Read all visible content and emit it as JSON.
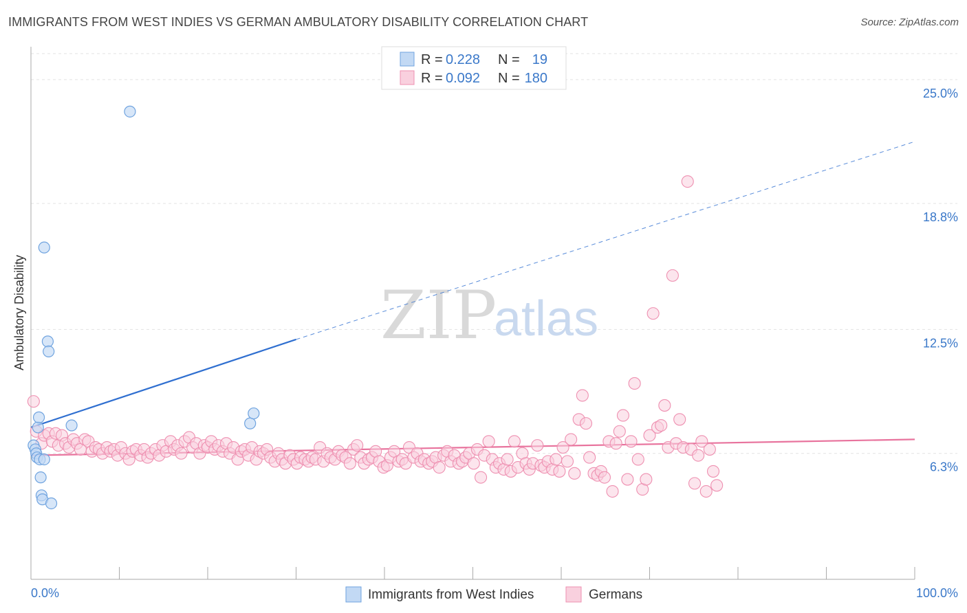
{
  "title": "IMMIGRANTS FROM WEST INDIES VS GERMAN AMBULATORY DISABILITY CORRELATION CHART",
  "source": "Source: ZipAtlas.com",
  "watermark": {
    "zip": "ZIP",
    "atlas": "atlas"
  },
  "colors": {
    "blue": "#6fa3df",
    "blue_fill": "#c2d9f4",
    "blue_line": "#2f6fd0",
    "pink": "#ee8fb0",
    "pink_fill": "#f9d0de",
    "pink_line": "#e8739d",
    "axis_text": "#3a78c9"
  },
  "legend": {
    "rows": [
      {
        "r_label": "R =",
        "r_value": "0.228",
        "n_label": "N =",
        "n_value": "19"
      },
      {
        "r_label": "R =",
        "r_value": "0.092",
        "n_label": "N =",
        "n_value": "180"
      }
    ]
  },
  "bottom_legend": [
    "Immigrants from West Indies",
    "Germans"
  ],
  "chart_data": {
    "type": "scatter",
    "title": "IMMIGRANTS FROM WEST INDIES VS GERMAN AMBULATORY DISABILITY CORRELATION CHART",
    "xlabel": "",
    "ylabel": "Ambulatory Disability",
    "xlim": [
      0,
      100
    ],
    "ylim": [
      0,
      26.3
    ],
    "x_tick_labels": [
      "0.0%",
      "100.0%"
    ],
    "y_ticks": [
      6.3,
      12.5,
      18.8,
      25.0
    ],
    "y_tick_labels": [
      "6.3%",
      "12.5%",
      "18.8%",
      "25.0%"
    ],
    "grid": true,
    "legend_position": "top-center",
    "series": [
      {
        "name": "Immigrants from West Indies",
        "color": "#6fa3df",
        "trend": {
          "x": [
            0,
            30
          ],
          "y": [
            7.6,
            12.0
          ],
          "extended_to": [
            100,
            21.9
          ]
        },
        "points": [
          [
            0.3,
            6.7
          ],
          [
            0.5,
            6.5
          ],
          [
            0.6,
            6.3
          ],
          [
            0.7,
            6.1
          ],
          [
            0.8,
            7.6
          ],
          [
            0.9,
            8.1
          ],
          [
            1.0,
            6.0
          ],
          [
            1.1,
            5.1
          ],
          [
            1.2,
            4.2
          ],
          [
            1.3,
            4.0
          ],
          [
            1.5,
            16.6
          ],
          [
            1.5,
            6.0
          ],
          [
            1.9,
            11.9
          ],
          [
            2.0,
            11.4
          ],
          [
            2.3,
            3.8
          ],
          [
            4.6,
            7.7
          ],
          [
            11.2,
            23.4
          ],
          [
            24.8,
            7.8
          ],
          [
            25.2,
            8.3
          ]
        ]
      },
      {
        "name": "Germans",
        "color": "#ee8fb0",
        "trend": {
          "x": [
            0,
            100
          ],
          "y": [
            6.2,
            7.0
          ]
        },
        "points": [
          [
            0.3,
            8.9
          ],
          [
            0.6,
            7.4
          ],
          [
            1.2,
            6.8
          ],
          [
            1.5,
            7.2
          ],
          [
            2.0,
            7.3
          ],
          [
            2.4,
            6.9
          ],
          [
            2.8,
            7.3
          ],
          [
            3.1,
            6.7
          ],
          [
            3.5,
            7.2
          ],
          [
            3.9,
            6.8
          ],
          [
            4.3,
            6.6
          ],
          [
            4.8,
            7.0
          ],
          [
            5.2,
            6.8
          ],
          [
            5.6,
            6.5
          ],
          [
            6.1,
            7.0
          ],
          [
            6.5,
            6.9
          ],
          [
            6.9,
            6.4
          ],
          [
            7.3,
            6.6
          ],
          [
            7.7,
            6.5
          ],
          [
            8.1,
            6.3
          ],
          [
            8.6,
            6.6
          ],
          [
            9.0,
            6.4
          ],
          [
            9.4,
            6.5
          ],
          [
            9.8,
            6.2
          ],
          [
            10.2,
            6.6
          ],
          [
            10.7,
            6.3
          ],
          [
            11.1,
            6.0
          ],
          [
            11.5,
            6.4
          ],
          [
            11.9,
            6.5
          ],
          [
            12.4,
            6.2
          ],
          [
            12.8,
            6.5
          ],
          [
            13.2,
            6.1
          ],
          [
            13.6,
            6.3
          ],
          [
            14.1,
            6.5
          ],
          [
            14.5,
            6.2
          ],
          [
            14.9,
            6.7
          ],
          [
            15.3,
            6.4
          ],
          [
            15.8,
            6.9
          ],
          [
            16.2,
            6.5
          ],
          [
            16.6,
            6.7
          ],
          [
            17.0,
            6.3
          ],
          [
            17.4,
            6.9
          ],
          [
            17.9,
            7.1
          ],
          [
            18.3,
            6.6
          ],
          [
            18.7,
            6.8
          ],
          [
            19.1,
            6.3
          ],
          [
            19.6,
            6.7
          ],
          [
            20.0,
            6.6
          ],
          [
            20.4,
            6.9
          ],
          [
            20.8,
            6.5
          ],
          [
            21.2,
            6.7
          ],
          [
            21.7,
            6.4
          ],
          [
            22.1,
            6.8
          ],
          [
            22.5,
            6.3
          ],
          [
            22.9,
            6.6
          ],
          [
            23.4,
            6.0
          ],
          [
            23.8,
            6.4
          ],
          [
            24.2,
            6.5
          ],
          [
            24.6,
            6.2
          ],
          [
            25.0,
            6.6
          ],
          [
            25.5,
            6.0
          ],
          [
            25.9,
            6.4
          ],
          [
            26.3,
            6.3
          ],
          [
            26.7,
            6.5
          ],
          [
            27.1,
            6.1
          ],
          [
            27.6,
            5.9
          ],
          [
            28.0,
            6.3
          ],
          [
            28.4,
            6.0
          ],
          [
            28.8,
            5.8
          ],
          [
            29.3,
            6.2
          ],
          [
            29.7,
            6.0
          ],
          [
            30.1,
            5.8
          ],
          [
            30.5,
            6.1
          ],
          [
            31.0,
            6.0
          ],
          [
            31.4,
            5.9
          ],
          [
            31.8,
            6.1
          ],
          [
            32.2,
            6.0
          ],
          [
            32.7,
            6.6
          ],
          [
            33.1,
            5.9
          ],
          [
            33.5,
            6.3
          ],
          [
            33.9,
            6.1
          ],
          [
            34.4,
            6.0
          ],
          [
            34.8,
            6.4
          ],
          [
            35.2,
            6.2
          ],
          [
            35.6,
            6.1
          ],
          [
            36.1,
            5.8
          ],
          [
            36.5,
            6.5
          ],
          [
            36.9,
            6.7
          ],
          [
            37.3,
            6.1
          ],
          [
            37.7,
            5.8
          ],
          [
            38.2,
            6.0
          ],
          [
            38.6,
            6.1
          ],
          [
            39.0,
            6.4
          ],
          [
            39.4,
            5.9
          ],
          [
            39.9,
            5.6
          ],
          [
            40.3,
            5.7
          ],
          [
            40.7,
            6.1
          ],
          [
            41.1,
            6.4
          ],
          [
            41.6,
            5.9
          ],
          [
            42.0,
            6.0
          ],
          [
            42.4,
            5.8
          ],
          [
            42.8,
            6.6
          ],
          [
            43.3,
            6.1
          ],
          [
            43.7,
            6.3
          ],
          [
            44.1,
            5.9
          ],
          [
            44.5,
            6.0
          ],
          [
            45.0,
            5.8
          ],
          [
            45.4,
            5.9
          ],
          [
            45.8,
            6.1
          ],
          [
            46.2,
            5.6
          ],
          [
            46.7,
            6.2
          ],
          [
            47.1,
            6.4
          ],
          [
            47.5,
            5.9
          ],
          [
            47.9,
            6.2
          ],
          [
            48.4,
            5.8
          ],
          [
            48.8,
            5.9
          ],
          [
            49.2,
            6.1
          ],
          [
            49.6,
            6.3
          ],
          [
            50.1,
            5.8
          ],
          [
            50.5,
            6.5
          ],
          [
            50.9,
            5.1
          ],
          [
            51.3,
            6.2
          ],
          [
            51.8,
            6.9
          ],
          [
            52.2,
            6.0
          ],
          [
            52.6,
            5.6
          ],
          [
            53.0,
            5.8
          ],
          [
            53.5,
            5.5
          ],
          [
            53.9,
            6.0
          ],
          [
            54.3,
            5.4
          ],
          [
            54.7,
            6.9
          ],
          [
            55.1,
            5.6
          ],
          [
            55.6,
            6.3
          ],
          [
            56.0,
            5.8
          ],
          [
            56.4,
            5.5
          ],
          [
            56.8,
            5.8
          ],
          [
            57.3,
            6.7
          ],
          [
            57.7,
            5.7
          ],
          [
            58.1,
            5.6
          ],
          [
            58.5,
            5.9
          ],
          [
            59.0,
            5.5
          ],
          [
            59.4,
            6.0
          ],
          [
            59.8,
            5.4
          ],
          [
            60.2,
            6.6
          ],
          [
            60.7,
            5.9
          ],
          [
            61.1,
            7.0
          ],
          [
            61.5,
            5.3
          ],
          [
            62.0,
            8.0
          ],
          [
            62.4,
            9.2
          ],
          [
            62.8,
            7.8
          ],
          [
            63.2,
            6.1
          ],
          [
            63.7,
            5.3
          ],
          [
            64.1,
            5.2
          ],
          [
            64.5,
            5.4
          ],
          [
            64.9,
            5.1
          ],
          [
            65.4,
            6.9
          ],
          [
            65.8,
            4.4
          ],
          [
            66.2,
            6.8
          ],
          [
            66.6,
            7.4
          ],
          [
            67.0,
            8.2
          ],
          [
            67.5,
            5.0
          ],
          [
            67.9,
            6.9
          ],
          [
            68.3,
            9.8
          ],
          [
            68.7,
            6.0
          ],
          [
            69.2,
            4.5
          ],
          [
            69.6,
            5.0
          ],
          [
            70.0,
            7.2
          ],
          [
            70.4,
            13.3
          ],
          [
            70.9,
            7.6
          ],
          [
            71.3,
            7.7
          ],
          [
            71.7,
            8.7
          ],
          [
            72.1,
            6.6
          ],
          [
            72.6,
            15.2
          ],
          [
            73.0,
            6.8
          ],
          [
            73.4,
            8.0
          ],
          [
            73.8,
            6.6
          ],
          [
            74.3,
            19.9
          ],
          [
            74.7,
            6.5
          ],
          [
            75.1,
            4.8
          ],
          [
            75.5,
            6.2
          ],
          [
            75.9,
            6.9
          ],
          [
            76.4,
            4.4
          ],
          [
            76.8,
            6.5
          ],
          [
            77.2,
            5.4
          ],
          [
            77.6,
            4.7
          ]
        ]
      }
    ]
  }
}
